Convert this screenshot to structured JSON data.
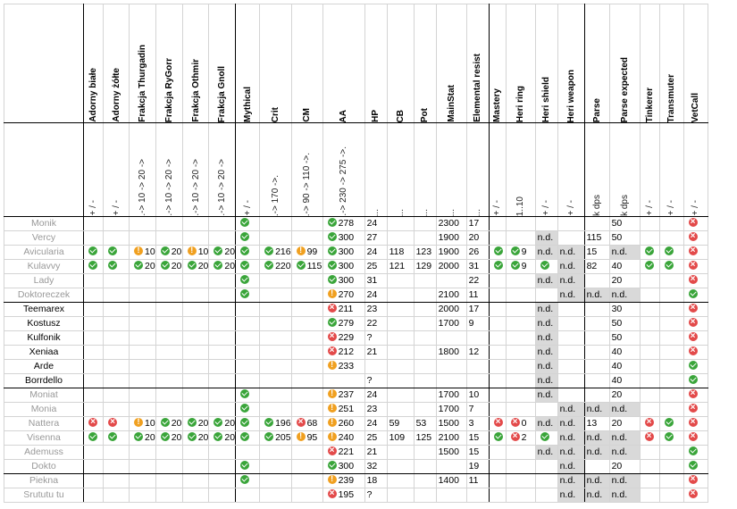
{
  "columns": [
    {
      "key": "name",
      "title": "",
      "sub": ""
    },
    {
      "key": "adorny_biale",
      "title": "Adorny białe",
      "sub": "+ / -"
    },
    {
      "key": "adorny_zolte",
      "title": "Adorny żółte",
      "sub": "+ / -"
    },
    {
      "key": "thurgadin",
      "title": "Frakcja Thurgadin",
      "sub": ".-> 10 -> 20 ->"
    },
    {
      "key": "rygorr",
      "title": "Frakcja RyGorr",
      "sub": ".-> 10 -> 20 ->"
    },
    {
      "key": "othmir",
      "title": "Frakcja Othmir",
      "sub": ".-> 10 -> 20 ->"
    },
    {
      "key": "gnoll",
      "title": "Frakcja Gnoll",
      "sub": ".-> 10 -> 20 ->"
    },
    {
      "key": "mythical",
      "title": "Mythical",
      "sub": "+ / -"
    },
    {
      "key": "crit",
      "title": "Crit",
      "sub": ".-> 170 ->."
    },
    {
      "key": "cm",
      "title": "CM",
      "sub": ".-> 90 -> 110 ->."
    },
    {
      "key": "aa",
      "title": "AA",
      "sub": ".-> 230 -> 275 ->."
    },
    {
      "key": "hp",
      "title": "HP",
      "sub": "..."
    },
    {
      "key": "cb",
      "title": "CB",
      "sub": "..."
    },
    {
      "key": "pot",
      "title": "Pot",
      "sub": "..."
    },
    {
      "key": "mainstat",
      "title": "MainStat",
      "sub": "..."
    },
    {
      "key": "elem",
      "title": "Elemental resist",
      "sub": "..."
    },
    {
      "key": "mastery",
      "title": "Mastery",
      "sub": "+ / -"
    },
    {
      "key": "heri_ring",
      "title": "Heri ring",
      "sub": "1..10"
    },
    {
      "key": "heri_shield",
      "title": "Heri shield",
      "sub": "+ / -"
    },
    {
      "key": "heri_weapon",
      "title": "Heri weapon",
      "sub": "+ / -"
    },
    {
      "key": "parse",
      "title": "Parse",
      "sub": "k dps"
    },
    {
      "key": "parse_exp",
      "title": "Parse expected",
      "sub": "k dps"
    },
    {
      "key": "tinkerer",
      "title": "Tinkerer",
      "sub": "+ / -"
    },
    {
      "key": "transmuter",
      "title": "Transmuter",
      "sub": "+ / -"
    },
    {
      "key": "vetcall",
      "title": "VetCall",
      "sub": "+ / -"
    }
  ],
  "colors": {
    "ok": "#3aa53a",
    "warn": "#f0a020",
    "bad": "#e34a4a",
    "nd_bg": "#d9d9d9"
  },
  "groups": [
    {
      "rows": [
        {
          "name": "Monik",
          "dark": false,
          "cells": {
            "mythical": {
              "i": "ok"
            },
            "aa": {
              "i": "ok",
              "v": "278"
            },
            "hp": {
              "v": "24"
            },
            "mainstat": {
              "v": "2300"
            },
            "elem": {
              "v": "17"
            },
            "parse_exp": {
              "v": "50"
            },
            "vetcall": {
              "i": "bad"
            }
          }
        },
        {
          "name": "Vercy",
          "dark": false,
          "cells": {
            "mythical": {
              "i": "ok"
            },
            "aa": {
              "i": "ok",
              "v": "300"
            },
            "hp": {
              "v": "27"
            },
            "mainstat": {
              "v": "1900"
            },
            "elem": {
              "v": "20"
            },
            "heri_shield": {
              "nd": true
            },
            "parse": {
              "v": "115"
            },
            "parse_exp": {
              "v": "50"
            },
            "vetcall": {
              "i": "bad"
            }
          }
        },
        {
          "name": "Avicularia",
          "dark": false,
          "cells": {
            "adorny_biale": {
              "i": "ok"
            },
            "adorny_zolte": {
              "i": "ok"
            },
            "thurgadin": {
              "i": "warn",
              "v": "10"
            },
            "rygorr": {
              "i": "ok",
              "v": "20"
            },
            "othmir": {
              "i": "warn",
              "v": "10"
            },
            "gnoll": {
              "i": "ok",
              "v": "20"
            },
            "mythical": {
              "i": "ok"
            },
            "crit": {
              "i": "ok",
              "v": "216"
            },
            "cm": {
              "i": "warn",
              "v": "99"
            },
            "aa": {
              "i": "ok",
              "v": "300"
            },
            "hp": {
              "v": "24"
            },
            "cb": {
              "v": "118"
            },
            "pot": {
              "v": "123"
            },
            "mainstat": {
              "v": "1900"
            },
            "elem": {
              "v": "26"
            },
            "mastery": {
              "i": "ok"
            },
            "heri_ring": {
              "i": "ok",
              "v": "9"
            },
            "heri_shield": {
              "nd": true
            },
            "heri_weapon": {
              "nd": true
            },
            "parse": {
              "v": "15"
            },
            "parse_exp": {
              "nd": true
            },
            "tinkerer": {
              "i": "ok"
            },
            "transmuter": {
              "i": "ok"
            },
            "vetcall": {
              "i": "bad"
            }
          }
        },
        {
          "name": "Kulavvy",
          "dark": false,
          "cells": {
            "adorny_biale": {
              "i": "ok"
            },
            "adorny_zolte": {
              "i": "ok"
            },
            "thurgadin": {
              "i": "ok",
              "v": "20"
            },
            "rygorr": {
              "i": "ok",
              "v": "20"
            },
            "othmir": {
              "i": "ok",
              "v": "20"
            },
            "gnoll": {
              "i": "ok",
              "v": "20"
            },
            "mythical": {
              "i": "ok"
            },
            "crit": {
              "i": "ok",
              "v": "220"
            },
            "cm": {
              "i": "ok",
              "v": "115"
            },
            "aa": {
              "i": "ok",
              "v": "300"
            },
            "hp": {
              "v": "25"
            },
            "cb": {
              "v": "121"
            },
            "pot": {
              "v": "129"
            },
            "mainstat": {
              "v": "2000"
            },
            "elem": {
              "v": "31"
            },
            "mastery": {
              "i": "ok"
            },
            "heri_ring": {
              "i": "ok",
              "v": "9"
            },
            "heri_shield": {
              "i": "ok"
            },
            "heri_weapon": {
              "nd": true
            },
            "parse": {
              "v": "82"
            },
            "parse_exp": {
              "v": "40"
            },
            "tinkerer": {
              "i": "ok"
            },
            "transmuter": {
              "i": "ok"
            },
            "vetcall": {
              "i": "bad"
            }
          }
        },
        {
          "name": "Lady",
          "dark": false,
          "cells": {
            "mythical": {
              "i": "ok"
            },
            "aa": {
              "i": "ok",
              "v": "300"
            },
            "hp": {
              "v": "31"
            },
            "elem": {
              "v": "22"
            },
            "heri_shield": {
              "nd": true
            },
            "heri_weapon": {
              "nd": true
            },
            "parse_exp": {
              "v": "20"
            },
            "vetcall": {
              "i": "bad"
            }
          }
        },
        {
          "name": "Doktoreczek",
          "dark": false,
          "cells": {
            "mythical": {
              "i": "ok"
            },
            "aa": {
              "i": "warn",
              "v": "270"
            },
            "hp": {
              "v": "24"
            },
            "mainstat": {
              "v": "2100"
            },
            "elem": {
              "v": "11"
            },
            "heri_weapon": {
              "nd": true
            },
            "parse": {
              "nd": true
            },
            "parse_exp": {
              "nd": true
            },
            "vetcall": {
              "i": "ok"
            }
          }
        }
      ]
    },
    {
      "rows": [
        {
          "name": "Teemarex",
          "dark": true,
          "cells": {
            "aa": {
              "i": "bad",
              "v": "211"
            },
            "hp": {
              "v": "23"
            },
            "mainstat": {
              "v": "2000"
            },
            "elem": {
              "v": "17"
            },
            "heri_shield": {
              "nd": true
            },
            "parse_exp": {
              "v": "30"
            },
            "vetcall": {
              "i": "bad"
            }
          }
        },
        {
          "name": "Kostusz",
          "dark": true,
          "cells": {
            "aa": {
              "i": "ok",
              "v": "279"
            },
            "hp": {
              "v": "22"
            },
            "mainstat": {
              "v": "1700"
            },
            "elem": {
              "v": "9"
            },
            "heri_shield": {
              "nd": true
            },
            "parse_exp": {
              "v": "50"
            },
            "vetcall": {
              "i": "bad"
            }
          }
        },
        {
          "name": "Kulfonik",
          "dark": true,
          "cells": {
            "aa": {
              "i": "bad",
              "v": "229"
            },
            "hp": {
              "v": "?"
            },
            "heri_shield": {
              "nd": true
            },
            "parse_exp": {
              "v": "50"
            },
            "vetcall": {
              "i": "bad"
            }
          }
        },
        {
          "name": "Xeniaa",
          "dark": true,
          "cells": {
            "aa": {
              "i": "bad",
              "v": "212"
            },
            "hp": {
              "v": "21"
            },
            "mainstat": {
              "v": "1800"
            },
            "elem": {
              "v": "12"
            },
            "heri_shield": {
              "nd": true
            },
            "parse_exp": {
              "v": "40"
            },
            "vetcall": {
              "i": "bad"
            }
          }
        },
        {
          "name": "Arde",
          "dark": true,
          "cells": {
            "aa": {
              "i": "warn",
              "v": "233"
            },
            "heri_shield": {
              "nd": true
            },
            "parse_exp": {
              "v": "40"
            },
            "vetcall": {
              "i": "ok"
            }
          }
        },
        {
          "name": "Borrdello",
          "dark": true,
          "cells": {
            "hp": {
              "v": "?"
            },
            "heri_shield": {
              "nd": true
            },
            "parse_exp": {
              "v": "40"
            },
            "vetcall": {
              "i": "ok"
            }
          }
        }
      ]
    },
    {
      "rows": [
        {
          "name": "Moniat",
          "dark": false,
          "cells": {
            "mythical": {
              "i": "ok"
            },
            "aa": {
              "i": "warn",
              "v": "237"
            },
            "hp": {
              "v": "24"
            },
            "mainstat": {
              "v": "1700"
            },
            "elem": {
              "v": "10"
            },
            "heri_shield": {
              "nd": true
            },
            "parse_exp": {
              "v": "20"
            },
            "vetcall": {
              "i": "bad"
            }
          }
        },
        {
          "name": "Monia",
          "dark": false,
          "cells": {
            "mythical": {
              "i": "ok"
            },
            "aa": {
              "i": "warn",
              "v": "251"
            },
            "hp": {
              "v": "23"
            },
            "mainstat": {
              "v": "1700"
            },
            "elem": {
              "v": "7"
            },
            "heri_weapon": {
              "nd": true
            },
            "parse": {
              "nd": true
            },
            "parse_exp": {
              "nd": true
            },
            "vetcall": {
              "i": "bad"
            }
          }
        },
        {
          "name": "Nattera",
          "dark": false,
          "cells": {
            "adorny_biale": {
              "i": "bad"
            },
            "adorny_zolte": {
              "i": "bad"
            },
            "thurgadin": {
              "i": "warn",
              "v": "10"
            },
            "rygorr": {
              "i": "ok",
              "v": "20"
            },
            "othmir": {
              "i": "ok",
              "v": "20"
            },
            "gnoll": {
              "i": "ok",
              "v": "20"
            },
            "mythical": {
              "i": "ok"
            },
            "crit": {
              "i": "ok",
              "v": "196"
            },
            "cm": {
              "i": "bad",
              "v": "68"
            },
            "aa": {
              "i": "warn",
              "v": "260"
            },
            "hp": {
              "v": "24"
            },
            "cb": {
              "v": "59"
            },
            "pot": {
              "v": "53"
            },
            "mainstat": {
              "v": "1500"
            },
            "elem": {
              "v": "3"
            },
            "mastery": {
              "i": "bad"
            },
            "heri_ring": {
              "i": "bad",
              "v": "0"
            },
            "heri_shield": {
              "nd": true
            },
            "heri_weapon": {
              "nd": true
            },
            "parse": {
              "v": "13"
            },
            "parse_exp": {
              "v": "20"
            },
            "tinkerer": {
              "i": "bad"
            },
            "transmuter": {
              "i": "ok"
            },
            "vetcall": {
              "i": "bad"
            }
          }
        },
        {
          "name": "Visenna",
          "dark": false,
          "cells": {
            "adorny_biale": {
              "i": "ok"
            },
            "adorny_zolte": {
              "i": "ok"
            },
            "thurgadin": {
              "i": "ok",
              "v": "20"
            },
            "rygorr": {
              "i": "ok",
              "v": "20"
            },
            "othmir": {
              "i": "ok",
              "v": "20"
            },
            "gnoll": {
              "i": "ok",
              "v": "20"
            },
            "mythical": {
              "i": "ok"
            },
            "crit": {
              "i": "ok",
              "v": "205"
            },
            "cm": {
              "i": "warn",
              "v": "95"
            },
            "aa": {
              "i": "warn",
              "v": "240"
            },
            "hp": {
              "v": "25"
            },
            "cb": {
              "v": "109"
            },
            "pot": {
              "v": "125"
            },
            "mainstat": {
              "v": "2100"
            },
            "elem": {
              "v": "15"
            },
            "mastery": {
              "i": "ok"
            },
            "heri_ring": {
              "i": "bad",
              "v": "2"
            },
            "heri_shield": {
              "i": "ok"
            },
            "heri_weapon": {
              "nd": true
            },
            "parse": {
              "nd": true
            },
            "parse_exp": {
              "nd": true
            },
            "tinkerer": {
              "i": "bad"
            },
            "transmuter": {
              "i": "ok"
            },
            "vetcall": {
              "i": "bad"
            }
          }
        },
        {
          "name": "Ademuss",
          "dark": false,
          "cells": {
            "aa": {
              "i": "bad",
              "v": "221"
            },
            "hp": {
              "v": "21"
            },
            "mainstat": {
              "v": "1500"
            },
            "elem": {
              "v": "15"
            },
            "heri_shield": {
              "nd": true
            },
            "heri_weapon": {
              "nd": true
            },
            "parse": {
              "nd": true
            },
            "parse_exp": {
              "nd": true
            },
            "vetcall": {
              "i": "ok"
            }
          }
        },
        {
          "name": "Dokto",
          "dark": false,
          "cells": {
            "mythical": {
              "i": "ok"
            },
            "aa": {
              "i": "ok",
              "v": "300"
            },
            "hp": {
              "v": "32"
            },
            "elem": {
              "v": "19"
            },
            "heri_weapon": {
              "nd": true
            },
            "parse_exp": {
              "v": "20"
            },
            "vetcall": {
              "i": "ok"
            }
          }
        }
      ]
    },
    {
      "rows": [
        {
          "name": "Piekna",
          "dark": false,
          "cells": {
            "mythical": {
              "i": "ok"
            },
            "aa": {
              "i": "warn",
              "v": "239"
            },
            "hp": {
              "v": "18"
            },
            "mainstat": {
              "v": "1400"
            },
            "elem": {
              "v": "11"
            },
            "heri_weapon": {
              "nd": true
            },
            "parse": {
              "nd": true
            },
            "parse_exp": {
              "nd": true
            },
            "vetcall": {
              "i": "bad"
            }
          }
        },
        {
          "name": "Srututu tu",
          "dark": false,
          "cells": {
            "aa": {
              "i": "bad",
              "v": "195"
            },
            "hp": {
              "v": "?"
            },
            "heri_weapon": {
              "nd": true
            },
            "parse": {
              "nd": true
            },
            "parse_exp": {
              "nd": true
            },
            "vetcall": {
              "i": "bad"
            }
          }
        }
      ]
    }
  ]
}
